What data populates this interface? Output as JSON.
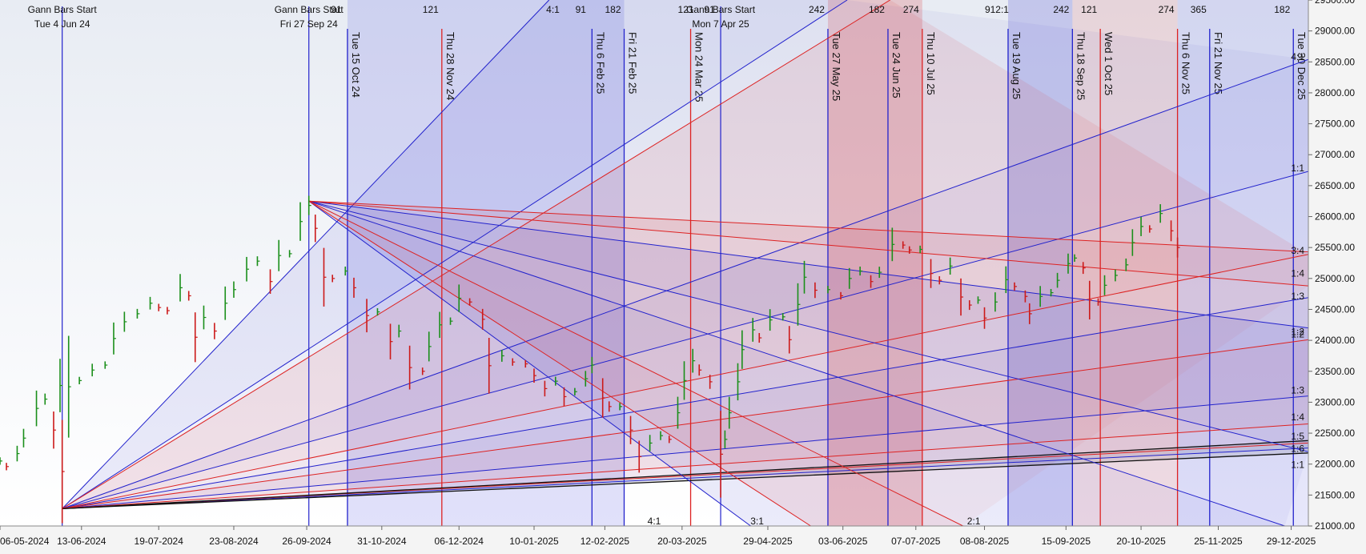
{
  "chart_data": {
    "type": "line",
    "title": "",
    "xlabel": "",
    "ylabel": "",
    "x_domain": [
      "2024-05-06",
      "2026-01-06"
    ],
    "ylim": [
      21000,
      29500
    ],
    "y_ticks": [
      21000,
      21500,
      22000,
      22500,
      23000,
      23500,
      24000,
      24500,
      25000,
      25500,
      26000,
      26500,
      27000,
      27500,
      28000,
      28500,
      29000,
      29500
    ],
    "y_tick_labels": [
      "21000.00",
      "21500.00",
      "22000.00",
      "22500.00",
      "23000.00",
      "23500.00",
      "24000.00",
      "24500.00",
      "25000.00",
      "25500.00",
      "26000.00",
      "26500.00",
      "27000.00",
      "27500.00",
      "28000.00",
      "28500.00",
      "29000.00",
      "29500.00"
    ],
    "x_ticks": [
      {
        "date": "2024-05-06",
        "label": "06-05-2024"
      },
      {
        "date": "2024-06-13",
        "label": "13-06-2024"
      },
      {
        "date": "2024-07-19",
        "label": "19-07-2024"
      },
      {
        "date": "2024-08-23",
        "label": "23-08-2024"
      },
      {
        "date": "2024-09-26",
        "label": "26-09-2024"
      },
      {
        "date": "2024-10-31",
        "label": "31-10-2024"
      },
      {
        "date": "2024-12-06",
        "label": "06-12-2024"
      },
      {
        "date": "2025-01-10",
        "label": "10-01-2025"
      },
      {
        "date": "2025-02-12",
        "label": "12-02-2025"
      },
      {
        "date": "2025-03-20",
        "label": "20-03-2025"
      },
      {
        "date": "2025-04-29",
        "label": "29-04-2025"
      },
      {
        "date": "2025-06-03",
        "label": "03-06-2025"
      },
      {
        "date": "2025-07-07",
        "label": "07-07-2025"
      },
      {
        "date": "2025-08-08",
        "label": "08-08-2025"
      },
      {
        "date": "2025-09-15",
        "label": "15-09-2025"
      },
      {
        "date": "2025-10-20",
        "label": "20-10-2025"
      },
      {
        "date": "2025-11-25",
        "label": "25-11-2025"
      },
      {
        "date": "2025-12-29",
        "label": "29-12-2025"
      }
    ],
    "gann_starts": [
      {
        "date": "2024-06-04",
        "line1": "Gann Bars Start",
        "line2": "Tue 4 Jun 24"
      },
      {
        "date": "2024-09-27",
        "line1": "Gann Bars Start",
        "line2": "Fri 27 Sep 24"
      },
      {
        "date": "2025-04-07",
        "line1": "Gann Bars Start",
        "line2": "Mon 7 Apr 25"
      }
    ],
    "event_lines": [
      {
        "date": "2024-10-15",
        "label": "Tue 15 Oct 24",
        "color": "#2222cc"
      },
      {
        "date": "2024-11-28",
        "label": "Thu 28 Nov 24",
        "color": "#dd2222"
      },
      {
        "date": "2025-02-06",
        "label": "Thu 6 Feb 25",
        "color": "#2222cc"
      },
      {
        "date": "2025-02-21",
        "label": "Fri 21 Feb 25",
        "color": "#2222cc"
      },
      {
        "date": "2025-03-24",
        "label": "Mon 24 Mar 25",
        "color": "#dd2222"
      },
      {
        "date": "2025-05-27",
        "label": "Tue 27 May 25",
        "color": "#2222cc"
      },
      {
        "date": "2025-06-24",
        "label": "Tue 24 Jun 25",
        "color": "#2222cc"
      },
      {
        "date": "2025-07-10",
        "label": "Thu 10 Jul 25",
        "color": "#dd2222"
      },
      {
        "date": "2025-08-19",
        "label": "Tue 19 Aug 25",
        "color": "#2222cc"
      },
      {
        "date": "2025-09-18",
        "label": "Thu 18 Sep 25",
        "color": "#2222cc"
      },
      {
        "date": "2025-10-01",
        "label": "Wed 1 Oct 25",
        "color": "#dd2222"
      },
      {
        "date": "2025-11-06",
        "label": "Thu 6 Nov 25",
        "color": "#dd2222"
      },
      {
        "date": "2025-11-21",
        "label": "Fri 21 Nov 25",
        "color": "#2222cc"
      },
      {
        "date": "2025-12-30",
        "label": "Tue 30 Dec 25",
        "color": "#2222cc"
      }
    ],
    "day_count_labels": [
      {
        "date": "2024-10-15",
        "text": "91"
      },
      {
        "date": "2024-11-28",
        "text": "121"
      },
      {
        "date": "2025-01-24",
        "text": "4:1"
      },
      {
        "date": "2025-02-06",
        "text": "91"
      },
      {
        "date": "2025-02-21",
        "text": "182"
      },
      {
        "date": "2025-04-07",
        "text": "91"
      },
      {
        "date": "2025-03-27",
        "text": "121"
      },
      {
        "date": "2025-05-27",
        "text": "242"
      },
      {
        "date": "2025-06-24",
        "text": "182"
      },
      {
        "date": "2025-07-10",
        "text": "274"
      },
      {
        "date": "2025-08-19",
        "text": "912:1"
      },
      {
        "date": "2025-09-18",
        "text": "242"
      },
      {
        "date": "2025-10-01",
        "text": "121"
      },
      {
        "date": "2025-11-06",
        "text": "274"
      },
      {
        "date": "2025-11-21",
        "text": "365"
      },
      {
        "date": "2025-12-30",
        "text": "182"
      }
    ],
    "bottom_ratio_labels": [
      {
        "date": "2025-03-07",
        "text": "4:1"
      },
      {
        "date": "2025-04-24",
        "text": "3:1"
      },
      {
        "date": "2025-08-03",
        "text": "2:1"
      }
    ],
    "right_ratio_labels": [
      {
        "value": 28580,
        "text": "4:1"
      },
      {
        "value": 26780,
        "text": "1:1"
      },
      {
        "value": 25450,
        "text": "3:4"
      },
      {
        "value": 25080,
        "text": "1:4"
      },
      {
        "value": 24710,
        "text": "1:3"
      },
      {
        "value": 24140,
        "text": "1:2"
      },
      {
        "value": 24100,
        "text": "1:2"
      },
      {
        "value": 23190,
        "text": "1:3"
      },
      {
        "value": 22760,
        "text": "1:4"
      },
      {
        "value": 22450,
        "text": "1:5"
      },
      {
        "value": 22250,
        "text": "1:6"
      },
      {
        "value": 21990,
        "text": "1:1"
      }
    ],
    "fans": [
      {
        "origin": [
          "2024-06-04",
          21280
        ],
        "color": "#2222cc",
        "width": 1,
        "targets": [
          [
            "2025-01-17",
            29500
          ],
          [
            "2025-06-05",
            29500
          ],
          [
            "2026-01-06",
            28540
          ],
          [
            "2026-01-06",
            26730
          ],
          [
            "2026-01-06",
            24690
          ],
          [
            "2026-01-06",
            23100
          ],
          [
            "2026-01-06",
            22260
          ]
        ]
      },
      {
        "origin": [
          "2024-06-04",
          21280
        ],
        "color": "#dd2222",
        "width": 1,
        "targets": [
          [
            "2025-06-25",
            29500
          ],
          [
            "2026-01-06",
            25390
          ],
          [
            "2026-01-06",
            24010
          ],
          [
            "2026-01-06",
            22650
          ],
          [
            "2026-01-06",
            22340
          ]
        ]
      },
      {
        "origin": [
          "2024-06-04",
          21280
        ],
        "color": "#111111",
        "width": 1.3,
        "targets": [
          [
            "2026-01-06",
            22380
          ],
          [
            "2026-01-06",
            22180
          ]
        ]
      },
      {
        "origin": [
          "2024-09-27",
          26250
        ],
        "color": "#2222cc",
        "width": 1,
        "targets": [
          [
            "2026-01-06",
            24200
          ],
          [
            "2026-01-06",
            22200
          ],
          [
            "2025-12-26",
            21000
          ],
          [
            "2025-04-21",
            21000
          ]
        ]
      },
      {
        "origin": [
          "2024-09-27",
          26250
        ],
        "color": "#dd2222",
        "width": 1,
        "targets": [
          [
            "2026-01-06",
            25430
          ],
          [
            "2026-01-06",
            24880
          ],
          [
            "2025-07-29",
            21000
          ],
          [
            "2025-05-19",
            21000
          ]
        ]
      }
    ],
    "shaded_zones": [
      {
        "start": "2024-10-15",
        "end": "2025-02-21",
        "color": "#4444dd",
        "opacity": 0.16
      },
      {
        "start": "2025-05-27",
        "end": "2025-07-10",
        "color": "#dd3333",
        "opacity": 0.2
      },
      {
        "start": "2025-08-19",
        "end": "2025-09-18",
        "color": "#3333cc",
        "opacity": 0.2
      },
      {
        "start": "2025-09-18",
        "end": "2025-11-06",
        "color": "#dd4444",
        "opacity": 0.14
      },
      {
        "start": "2025-11-06",
        "end": "2026-01-06",
        "color": "#4444dd",
        "opacity": 0.13
      }
    ],
    "series": [
      {
        "name": "",
        "kind": "price",
        "points": [
          [
            "2024-05-06",
            22050
          ],
          [
            "2024-05-09",
            21960
          ],
          [
            "2024-05-14",
            22170
          ],
          [
            "2024-05-17",
            22420
          ],
          [
            "2024-05-23",
            22900
          ],
          [
            "2024-05-27",
            23050
          ],
          [
            "2024-05-31",
            22550
          ],
          [
            "2024-06-03",
            23270
          ],
          [
            "2024-06-04",
            21880
          ],
          [
            "2024-06-07",
            23250
          ],
          [
            "2024-06-12",
            23350
          ],
          [
            "2024-06-18",
            23520
          ],
          [
            "2024-06-24",
            23600
          ],
          [
            "2024-06-28",
            24030
          ],
          [
            "2024-07-03",
            24300
          ],
          [
            "2024-07-09",
            24430
          ],
          [
            "2024-07-15",
            24600
          ],
          [
            "2024-07-19",
            24530
          ],
          [
            "2024-07-23",
            24480
          ],
          [
            "2024-07-29",
            24850
          ],
          [
            "2024-08-02",
            24720
          ],
          [
            "2024-08-05",
            24050
          ],
          [
            "2024-08-09",
            24370
          ],
          [
            "2024-08-14",
            24150
          ],
          [
            "2024-08-19",
            24600
          ],
          [
            "2024-08-23",
            24820
          ],
          [
            "2024-08-29",
            25150
          ],
          [
            "2024-09-03",
            25280
          ],
          [
            "2024-09-09",
            24950
          ],
          [
            "2024-09-13",
            25370
          ],
          [
            "2024-09-18",
            25400
          ],
          [
            "2024-09-23",
            25920
          ],
          [
            "2024-09-27",
            26180
          ],
          [
            "2024-09-30",
            25810
          ],
          [
            "2024-10-04",
            25020
          ],
          [
            "2024-10-08",
            25000
          ],
          [
            "2024-10-14",
            25120
          ],
          [
            "2024-10-18",
            24850
          ],
          [
            "2024-10-24",
            24400
          ],
          [
            "2024-10-29",
            24460
          ],
          [
            "2024-11-04",
            23980
          ],
          [
            "2024-11-08",
            24150
          ],
          [
            "2024-11-13",
            23560
          ],
          [
            "2024-11-19",
            23500
          ],
          [
            "2024-11-22",
            23900
          ],
          [
            "2024-11-27",
            24250
          ],
          [
            "2024-12-02",
            24310
          ],
          [
            "2024-12-06",
            24680
          ],
          [
            "2024-12-11",
            24620
          ],
          [
            "2024-12-17",
            24340
          ],
          [
            "2024-12-20",
            23590
          ],
          [
            "2024-12-26",
            23750
          ],
          [
            "2024-12-31",
            23650
          ],
          [
            "2025-01-06",
            23620
          ],
          [
            "2025-01-10",
            23430
          ],
          [
            "2025-01-15",
            23220
          ],
          [
            "2025-01-20",
            23340
          ],
          [
            "2025-01-24",
            23090
          ],
          [
            "2025-01-29",
            23170
          ],
          [
            "2025-02-03",
            23380
          ],
          [
            "2025-02-06",
            23600
          ],
          [
            "2025-02-11",
            23070
          ],
          [
            "2025-02-14",
            22930
          ],
          [
            "2025-02-19",
            22930
          ],
          [
            "2025-02-24",
            22550
          ],
          [
            "2025-02-28",
            22120
          ],
          [
            "2025-03-05",
            22340
          ],
          [
            "2025-03-10",
            22460
          ],
          [
            "2025-03-14",
            22400
          ],
          [
            "2025-03-18",
            22830
          ],
          [
            "2025-03-21",
            23350
          ],
          [
            "2025-03-25",
            23670
          ],
          [
            "2025-03-28",
            23520
          ],
          [
            "2025-04-02",
            23330
          ],
          [
            "2025-04-07",
            22160
          ],
          [
            "2025-04-09",
            22400
          ],
          [
            "2025-04-11",
            22830
          ],
          [
            "2025-04-15",
            23330
          ],
          [
            "2025-04-17",
            23850
          ],
          [
            "2025-04-22",
            24170
          ],
          [
            "2025-04-25",
            24040
          ],
          [
            "2025-04-30",
            24330
          ],
          [
            "2025-05-06",
            24380
          ],
          [
            "2025-05-09",
            24010
          ],
          [
            "2025-05-13",
            24580
          ],
          [
            "2025-05-16",
            25020
          ],
          [
            "2025-05-21",
            24810
          ],
          [
            "2025-05-27",
            24820
          ],
          [
            "2025-06-02",
            24720
          ],
          [
            "2025-06-06",
            25000
          ],
          [
            "2025-06-11",
            25120
          ],
          [
            "2025-06-16",
            24950
          ],
          [
            "2025-06-20",
            25100
          ],
          [
            "2025-06-26",
            25550
          ],
          [
            "2025-07-01",
            25540
          ],
          [
            "2025-07-04",
            25460
          ],
          [
            "2025-07-09",
            25470
          ],
          [
            "2025-07-14",
            25080
          ],
          [
            "2025-07-18",
            24970
          ],
          [
            "2025-07-23",
            25200
          ],
          [
            "2025-07-28",
            24700
          ],
          [
            "2025-08-01",
            24570
          ],
          [
            "2025-08-05",
            24650
          ],
          [
            "2025-08-08",
            24360
          ],
          [
            "2025-08-13",
            24620
          ],
          [
            "2025-08-18",
            24980
          ],
          [
            "2025-08-22",
            24870
          ],
          [
            "2025-08-27",
            24710
          ],
          [
            "2025-08-29",
            24430
          ],
          [
            "2025-09-03",
            24710
          ],
          [
            "2025-09-08",
            24770
          ],
          [
            "2025-09-11",
            24970
          ],
          [
            "2025-09-16",
            25240
          ],
          [
            "2025-09-19",
            25330
          ],
          [
            "2025-09-23",
            25170
          ],
          [
            "2025-09-26",
            24650
          ],
          [
            "2025-09-30",
            24620
          ],
          [
            "2025-10-03",
            24890
          ],
          [
            "2025-10-08",
            25050
          ],
          [
            "2025-10-13",
            25220
          ],
          [
            "2025-10-16",
            25580
          ],
          [
            "2025-10-20",
            25840
          ],
          [
            "2025-10-24",
            25800
          ],
          [
            "2025-10-29",
            26050
          ],
          [
            "2025-11-03",
            25770
          ],
          [
            "2025-11-06",
            25500
          ]
        ]
      }
    ]
  }
}
